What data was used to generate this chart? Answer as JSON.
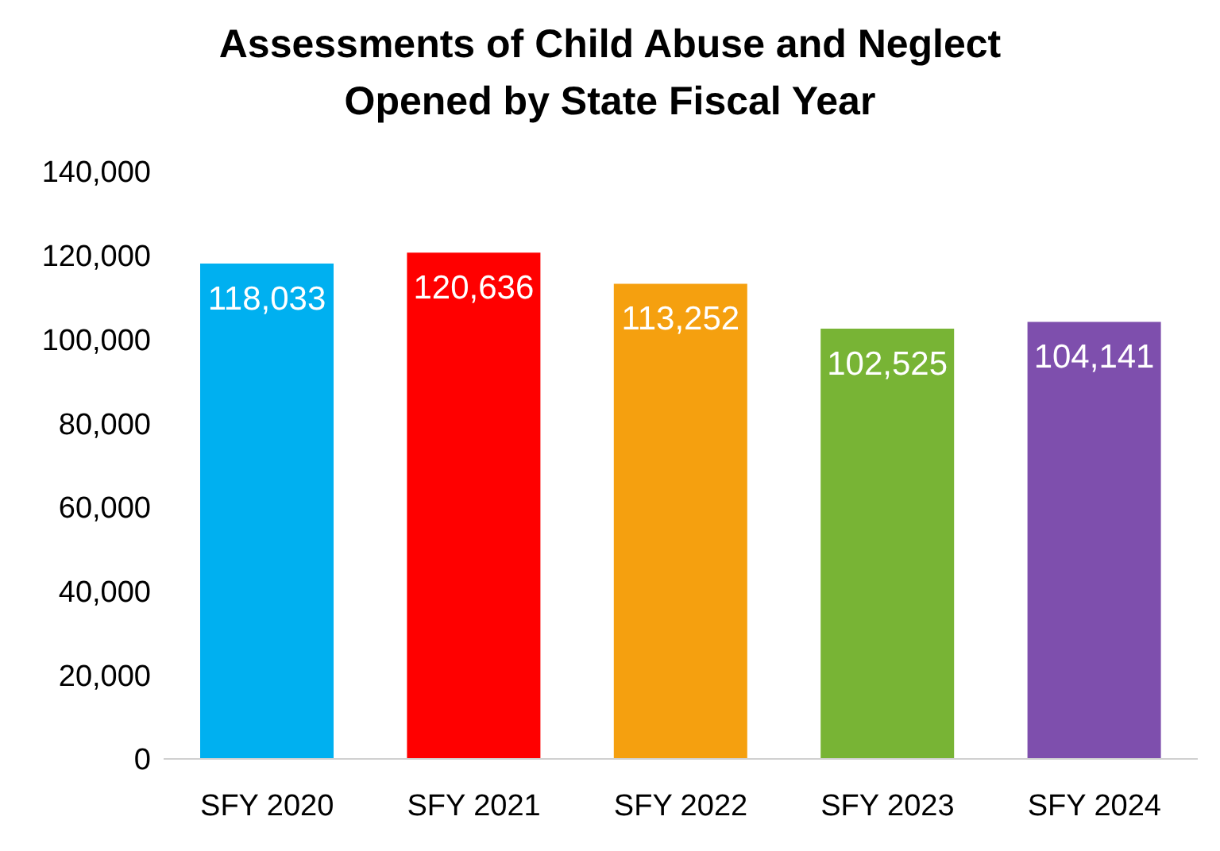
{
  "chart_data": {
    "type": "bar",
    "title": "Assessments of Child Abuse and Neglect Opened by State Fiscal Year",
    "categories": [
      "SFY 2020",
      "SFY 2021",
      "SFY 2022",
      "SFY 2023",
      "SFY 2024"
    ],
    "values": [
      118033,
      120636,
      113252,
      102525,
      104141
    ],
    "value_labels": [
      "118,033",
      "120,636",
      "113,252",
      "102,525",
      "104,141"
    ],
    "colors": [
      "#00b0f0",
      "#ff0000",
      "#f5a00f",
      "#78b435",
      "#7e4fad"
    ],
    "ylim": [
      0,
      140000
    ],
    "yticks": [
      0,
      {
        "value": 20000,
        "label": "20,000"
      },
      {
        "value": 40000,
        "label": "40,000"
      },
      {
        "value": 60000,
        "label": "60,000"
      },
      {
        "value": 80000,
        "label": "80,000"
      },
      {
        "value": 100000,
        "label": "100,000"
      },
      {
        "value": 120000,
        "label": "120,000"
      },
      {
        "value": 140000,
        "label": "140,000"
      }
    ],
    "grid": false
  }
}
